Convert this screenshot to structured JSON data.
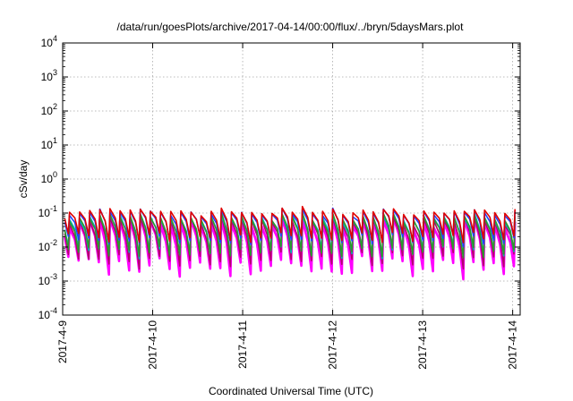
{
  "chart_data": {
    "type": "line",
    "title": "/data/run/goesPlots/archive/2017-04-14/00:00/flux/../bryn/5daysMars.plot",
    "xlabel": "Coordinated Universal Time (UTC)",
    "ylabel": "cSv/day",
    "yscale": "log",
    "ylim": [
      0.0001,
      10000
    ],
    "xlim": [
      "2017-04-09T00:00",
      "2017-04-14T02:00"
    ],
    "x_ticks": [
      "2017-4-9",
      "2017-4-10",
      "2017-4-11",
      "2017-4-12",
      "2017-4-13",
      "2017-4-14"
    ],
    "y_ticks": [
      {
        "base": "10",
        "exp": "-4",
        "value": 0.0001
      },
      {
        "base": "10",
        "exp": "-3",
        "value": 0.001
      },
      {
        "base": "10",
        "exp": "-2",
        "value": 0.01
      },
      {
        "base": "10",
        "exp": "-1",
        "value": 0.1
      },
      {
        "base": "10",
        "exp": "0",
        "value": 1
      },
      {
        "base": "10",
        "exp": "1",
        "value": 10
      },
      {
        "base": "10",
        "exp": "2",
        "value": 100
      },
      {
        "base": "10",
        "exp": "3",
        "value": 1000
      },
      {
        "base": "10",
        "exp": "4",
        "value": 10000
      }
    ],
    "grid": true,
    "legend": "none",
    "pattern": {
      "period_hours": 2.7,
      "peaks_per_day": 9,
      "description_free": true
    },
    "series": [
      {
        "color": "#ff00ff",
        "peak_range": [
          0.03,
          0.09
        ],
        "trough_range": [
          0.001,
          0.006
        ]
      },
      {
        "color": "#b4006e",
        "peak_range": [
          0.04,
          0.1
        ],
        "trough_range": [
          0.002,
          0.008
        ]
      },
      {
        "color": "#00b4b4",
        "peak_range": [
          0.05,
          0.11
        ],
        "trough_range": [
          0.004,
          0.012
        ]
      },
      {
        "color": "#2c9a2c",
        "peak_range": [
          0.05,
          0.11
        ],
        "trough_range": [
          0.004,
          0.012
        ]
      },
      {
        "color": "#2040ff",
        "peak_range": [
          0.07,
          0.15
        ],
        "trough_range": [
          0.01,
          0.025
        ]
      },
      {
        "color": "#e00000",
        "peak_range": [
          0.08,
          0.16
        ],
        "trough_range": [
          0.012,
          0.03
        ]
      }
    ]
  }
}
